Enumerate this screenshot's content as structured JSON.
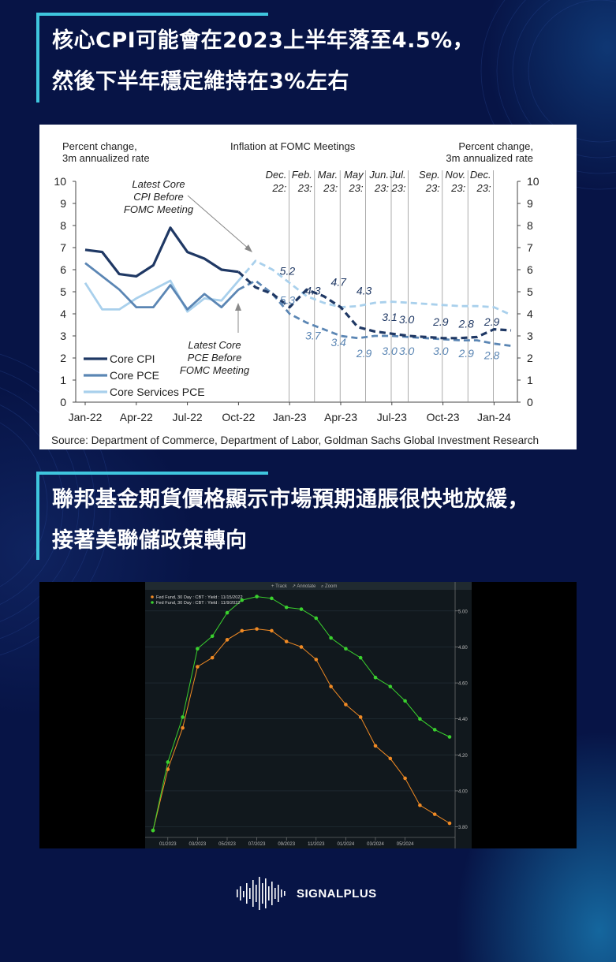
{
  "header1": {
    "line1": "核心CPI可能會在2023上半年落至4.5%，",
    "line2": "然後下半年穩定維持在3%左右"
  },
  "header2": {
    "line1": "聯邦基金期貨價格顯示市場預期通脹很快地放緩，",
    "line2": "接著美聯儲政策轉向"
  },
  "colors": {
    "background": "#071446",
    "accent": "#3fc6de",
    "core_cpi": "#1f3864",
    "core_pce": "#5b86b4",
    "core_services_pce": "#a9d0ec",
    "futures_orange": "#f08a24",
    "futures_green": "#3ad12e"
  },
  "brand": {
    "name": "SIGNALPLUS"
  },
  "chart_data": [
    {
      "type": "line",
      "title": "Inflation at FOMC Meetings",
      "ylabel_left": "Percent change,\n3m annualized rate",
      "ylabel_right": "Percent change,\n3m annualized rate",
      "ylim": [
        0,
        10
      ],
      "y_ticks": [
        "0",
        "1",
        "2",
        "3",
        "4",
        "5",
        "6",
        "7",
        "8",
        "9",
        "10"
      ],
      "x_ticks": [
        "Jan-22",
        "Apr-22",
        "Jul-22",
        "Oct-22",
        "Jan-23",
        "Apr-23",
        "Jul-23",
        "Oct-23",
        "Jan-24"
      ],
      "meetings": [
        "Dec.\n22:",
        "Feb.\n23:",
        "Mar.\n23:",
        "May\n23:",
        "Jun.\n23:",
        "Jul.\n23:",
        "Sep.\n23:",
        "Nov.\n23:",
        "Dec.\n23:"
      ],
      "meeting_months": [
        11.5,
        13.0,
        14.5,
        16.0,
        17.5,
        18.5,
        20.5,
        22.0,
        23.5
      ],
      "legend": [
        "Core CPI",
        "Core PCE",
        "Core Services PCE"
      ],
      "series": [
        {
          "name": "Core CPI",
          "historical": [
            [
              0,
              6.9
            ],
            [
              1,
              6.8
            ],
            [
              2,
              5.8
            ],
            [
              3,
              5.7
            ],
            [
              4,
              6.2
            ],
            [
              5,
              7.9
            ],
            [
              6,
              6.8
            ],
            [
              7,
              6.5
            ],
            [
              8,
              6.0
            ],
            [
              9,
              5.9
            ]
          ],
          "forecast": [
            [
              9,
              5.9
            ],
            [
              10,
              5.2
            ],
            [
              11,
              4.9
            ],
            [
              12,
              4.3
            ],
            [
              13,
              5.1
            ],
            [
              14,
              4.8
            ],
            [
              15,
              4.3
            ],
            [
              16,
              3.4
            ],
            [
              17,
              3.2
            ],
            [
              18,
              3.1
            ],
            [
              19,
              3.0
            ],
            [
              20,
              2.95
            ],
            [
              21,
              2.9
            ],
            [
              22,
              2.9
            ],
            [
              23,
              2.95
            ],
            [
              24,
              3.3
            ],
            [
              25,
              3.25
            ]
          ],
          "labels": [
            [
              11.5,
              "5.2"
            ],
            [
              13.0,
              "4.3"
            ],
            [
              14.5,
              "4.7"
            ],
            [
              16.0,
              "4.3"
            ],
            [
              17.5,
              "3.1"
            ],
            [
              18.5,
              "3.0"
            ],
            [
              20.5,
              "2.9"
            ],
            [
              22.0,
              "2.8"
            ],
            [
              23.5,
              "2.9"
            ]
          ]
        },
        {
          "name": "Core PCE",
          "historical": [
            [
              0,
              6.3
            ],
            [
              1,
              5.7
            ],
            [
              2,
              5.1
            ],
            [
              3,
              4.3
            ],
            [
              4,
              4.3
            ],
            [
              5,
              5.3
            ],
            [
              6,
              4.2
            ],
            [
              7,
              4.9
            ],
            [
              8,
              4.3
            ],
            [
              9,
              5.1
            ]
          ],
          "forecast": [
            [
              9,
              5.1
            ],
            [
              10,
              5.5
            ],
            [
              11,
              4.9
            ],
            [
              12,
              4.0
            ],
            [
              13,
              3.6
            ],
            [
              14,
              3.3
            ],
            [
              15,
              3.0
            ],
            [
              16,
              2.9
            ],
            [
              17,
              3.0
            ],
            [
              18,
              3.0
            ],
            [
              19,
              2.95
            ],
            [
              20,
              2.9
            ],
            [
              21,
              2.85
            ],
            [
              22,
              2.8
            ],
            [
              23,
              2.8
            ],
            [
              24,
              2.65
            ],
            [
              25,
              2.55
            ]
          ],
          "labels": [
            [
              11.5,
              "5.3"
            ],
            [
              13.0,
              "3.7"
            ],
            [
              14.5,
              "3.4"
            ],
            [
              16.0,
              "2.9"
            ],
            [
              17.5,
              "3.0"
            ],
            [
              18.5,
              "3.0"
            ],
            [
              20.5,
              "3.0"
            ],
            [
              22.0,
              "2.9"
            ],
            [
              23.5,
              "2.8"
            ]
          ]
        },
        {
          "name": "Core Services PCE",
          "historical": [
            [
              0,
              5.4
            ],
            [
              1,
              4.2
            ],
            [
              2,
              4.2
            ],
            [
              3,
              4.7
            ],
            [
              4,
              5.1
            ],
            [
              5,
              5.5
            ],
            [
              6,
              4.1
            ],
            [
              7,
              4.7
            ],
            [
              8,
              4.6
            ],
            [
              9,
              5.5
            ]
          ],
          "forecast": [
            [
              9,
              5.5
            ],
            [
              10,
              6.4
            ],
            [
              11,
              6.0
            ],
            [
              12,
              5.4
            ],
            [
              13,
              4.8
            ],
            [
              14,
              4.5
            ],
            [
              15,
              4.3
            ],
            [
              16,
              4.35
            ],
            [
              17,
              4.5
            ],
            [
              18,
              4.55
            ],
            [
              19,
              4.5
            ],
            [
              20,
              4.45
            ],
            [
              21,
              4.4
            ],
            [
              22,
              4.35
            ],
            [
              23,
              4.35
            ],
            [
              24,
              4.3
            ],
            [
              25,
              3.95
            ]
          ]
        }
      ],
      "annotations": {
        "cpi_note": "Latest Core\nCPI Before\nFOMC Meeting",
        "pce_note": "Latest Core\nPCE Before\nFOMC Meeting"
      },
      "source": "Source: Department of Commerce, Department of Labor, Goldman Sachs Global Investment Research"
    },
    {
      "type": "line",
      "toolbar": [
        "Track",
        "Annotate",
        "Zoom"
      ],
      "legend": [
        "Fed Fund, 30 Day : CBT : Yield : 11/15/2022",
        "Fed Fund, 30 Day : CBT : Yield : 11/9/2022"
      ],
      "x_ticks": [
        "01/2023",
        "03/2023",
        "05/2023",
        "07/2023",
        "09/2023",
        "11/2023",
        "01/2024",
        "03/2024",
        "05/2024"
      ],
      "y_ticks": [
        "3.80",
        "4.00",
        "4.20",
        "4.40",
        "4.60",
        "4.80",
        "5.00"
      ],
      "ylim": [
        3.75,
        5.1
      ],
      "series": [
        {
          "name": "Fed Fund, 30 Day : CBT : Yield : 11/15/2022",
          "values": [
            3.78,
            4.12,
            4.35,
            4.69,
            4.74,
            4.84,
            4.89,
            4.9,
            4.89,
            4.83,
            4.8,
            4.73,
            4.58,
            4.48,
            4.41,
            4.25,
            4.18,
            4.07,
            3.92,
            3.87,
            3.82
          ]
        },
        {
          "name": "Fed Fund, 30 Day : CBT : Yield : 11/9/2022",
          "values": [
            3.78,
            4.16,
            4.41,
            4.79,
            4.86,
            4.99,
            5.06,
            5.08,
            5.07,
            5.02,
            5.01,
            4.96,
            4.85,
            4.79,
            4.74,
            4.63,
            4.58,
            4.5,
            4.4,
            4.34,
            4.3
          ]
        }
      ]
    }
  ]
}
